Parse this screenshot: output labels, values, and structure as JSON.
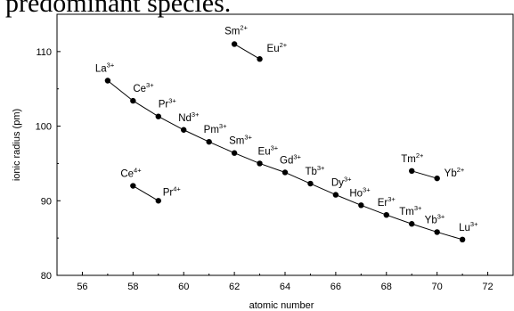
{
  "caption_fragment": "predominant species.",
  "chart_data": {
    "type": "scatter",
    "xlabel": "atomic number",
    "ylabel": "ionic radius (pm)",
    "xlim": [
      55,
      73
    ],
    "ylim": [
      80,
      115
    ],
    "xticks": [
      56,
      58,
      60,
      62,
      64,
      66,
      68,
      70,
      72
    ],
    "yticks": [
      80,
      90,
      100,
      110
    ],
    "grid": false,
    "legend": "none",
    "series": [
      {
        "points": [
          {
            "x": 57,
            "y": 106.1,
            "ion": "La",
            "charge": "3+"
          },
          {
            "x": 58,
            "y": 103.4,
            "ion": "Ce",
            "charge": "3+"
          },
          {
            "x": 59,
            "y": 101.3,
            "ion": "Pr",
            "charge": "3+"
          },
          {
            "x": 60,
            "y": 99.5,
            "ion": "Nd",
            "charge": "3+"
          },
          {
            "x": 61,
            "y": 97.9,
            "ion": "Pm",
            "charge": "3+"
          },
          {
            "x": 62,
            "y": 96.4,
            "ion": "Sm",
            "charge": "3+"
          },
          {
            "x": 63,
            "y": 95.0,
            "ion": "Eu",
            "charge": "3+"
          },
          {
            "x": 64,
            "y": 93.8,
            "ion": "Gd",
            "charge": "3+"
          },
          {
            "x": 65,
            "y": 92.3,
            "ion": "Tb",
            "charge": "3+"
          },
          {
            "x": 66,
            "y": 90.8,
            "ion": "Dy",
            "charge": "3+"
          },
          {
            "x": 67,
            "y": 89.4,
            "ion": "Ho",
            "charge": "3+"
          },
          {
            "x": 68,
            "y": 88.1,
            "ion": "Er",
            "charge": "3+"
          },
          {
            "x": 69,
            "y": 86.9,
            "ion": "Tm",
            "charge": "3+"
          },
          {
            "x": 70,
            "y": 85.8,
            "ion": "Yb",
            "charge": "3+"
          },
          {
            "x": 71,
            "y": 84.8,
            "ion": "Lu",
            "charge": "3+"
          }
        ]
      },
      {
        "points": [
          {
            "x": 62,
            "y": 111.0,
            "ion": "Sm",
            "charge": "2+"
          },
          {
            "x": 63,
            "y": 109.0,
            "ion": "Eu",
            "charge": "2+"
          }
        ]
      },
      {
        "points": [
          {
            "x": 69,
            "y": 94.0,
            "ion": "Tm",
            "charge": "2+"
          },
          {
            "x": 70,
            "y": 93.0,
            "ion": "Yb",
            "charge": "2+"
          }
        ]
      },
      {
        "points": [
          {
            "x": 58,
            "y": 92.0,
            "ion": "Ce",
            "charge": "4+"
          },
          {
            "x": 59,
            "y": 90.0,
            "ion": "Pr",
            "charge": "4+"
          }
        ]
      }
    ]
  }
}
